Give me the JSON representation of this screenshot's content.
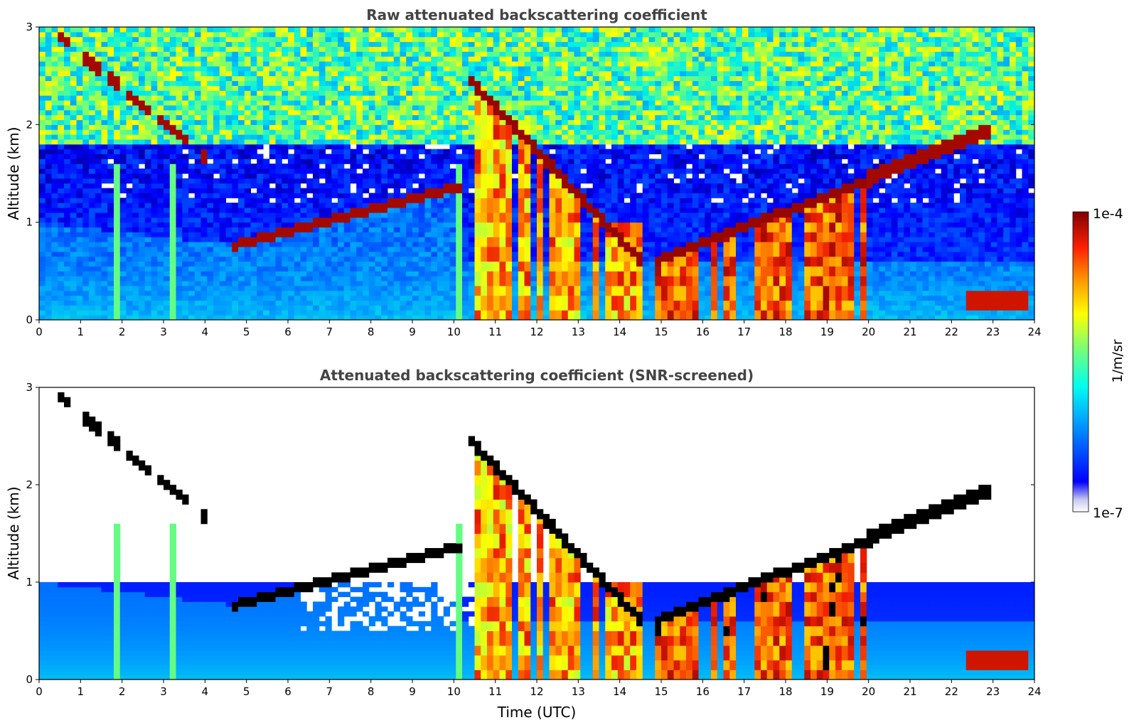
{
  "chart_data": [
    {
      "type": "heatmap",
      "title": "Raw attenuated backscattering coefficient",
      "xlabel": "",
      "ylabel": "Altitude (km)",
      "xlim": [
        0,
        24
      ],
      "ylim": [
        0,
        3
      ],
      "xticks": [
        "0",
        "1",
        "2",
        "3",
        "4",
        "5",
        "6",
        "7",
        "8",
        "9",
        "10",
        "11",
        "12",
        "13",
        "14",
        "15",
        "16",
        "17",
        "18",
        "19",
        "20",
        "21",
        "22",
        "23",
        "24"
      ],
      "yticks": [
        "0",
        "1",
        "2",
        "3"
      ],
      "screened": false,
      "layers": [
        {
          "t": [
            0.5,
            4.0
          ],
          "alt": [
            2.9,
            1.7
          ],
          "feature": "elevated aerosol/cloud streaks"
        },
        {
          "t": [
            4.5,
            10.0
          ],
          "alt": [
            0.78,
            1.4
          ],
          "feature": "rising boundary layer top"
        },
        {
          "t": [
            10.2,
            14.6
          ],
          "alt": [
            0.0,
            2.6
          ],
          "feature": "deep convective cloud / precipitation"
        },
        {
          "t": [
            14.8,
            20.0
          ],
          "alt": [
            0.0,
            1.6
          ],
          "feature": "low cloud and precipitation"
        },
        {
          "t": [
            20.0,
            23.0
          ],
          "alt": [
            1.45,
            2.0
          ],
          "feature": "stratocumulus layer"
        },
        {
          "t": [
            22.3,
            23.8
          ],
          "alt": [
            0.1,
            0.3
          ],
          "feature": "near-surface fog layer"
        }
      ]
    },
    {
      "type": "heatmap",
      "title": "Attenuated backscattering coefficient (SNR-screened)",
      "xlabel": "Time (UTC)",
      "ylabel": "Altitude (km)",
      "xlim": [
        0,
        24
      ],
      "ylim": [
        0,
        3
      ],
      "xticks": [
        "0",
        "1",
        "2",
        "3",
        "4",
        "5",
        "6",
        "7",
        "8",
        "9",
        "10",
        "11",
        "12",
        "13",
        "14",
        "15",
        "16",
        "17",
        "18",
        "19",
        "20",
        "21",
        "22",
        "23",
        "24"
      ],
      "yticks": [
        "0",
        "1",
        "2",
        "3"
      ],
      "screened": true,
      "layers": [
        {
          "t": [
            0.5,
            4.0
          ],
          "alt": [
            2.9,
            1.7
          ],
          "feature": "elevated aerosol/cloud streaks"
        },
        {
          "t": [
            4.5,
            10.0
          ],
          "alt": [
            0.78,
            1.4
          ],
          "feature": "rising boundary layer top"
        },
        {
          "t": [
            10.2,
            14.6
          ],
          "alt": [
            0.0,
            2.6
          ],
          "feature": "deep convective cloud / precipitation"
        },
        {
          "t": [
            14.8,
            20.0
          ],
          "alt": [
            0.0,
            1.6
          ],
          "feature": "low cloud and precipitation"
        },
        {
          "t": [
            20.0,
            23.0
          ],
          "alt": [
            1.45,
            2.0
          ],
          "feature": "stratocumulus layer"
        },
        {
          "t": [
            22.3,
            23.8
          ],
          "alt": [
            0.1,
            0.3
          ],
          "feature": "near-surface fog layer"
        }
      ]
    }
  ],
  "colorbar": {
    "label": "1/m/sr",
    "max_label": "1e-4",
    "min_label": "1e-7",
    "scale": "log",
    "range": [
      1e-07,
      0.0001
    ],
    "colormap": "jet"
  }
}
